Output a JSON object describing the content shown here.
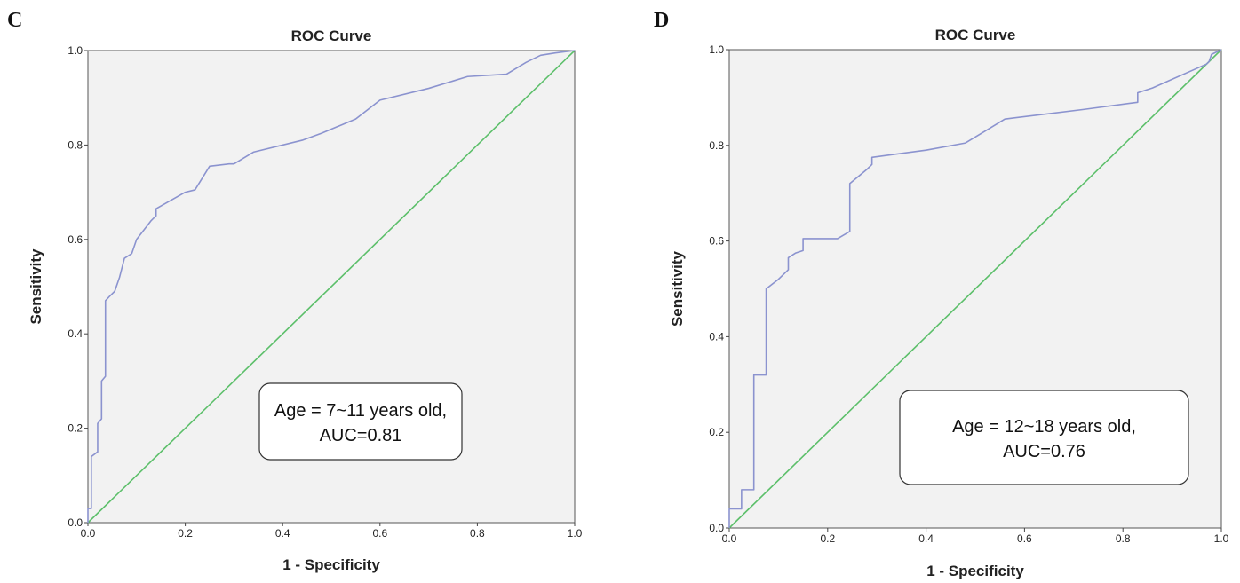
{
  "panels": [
    {
      "letter": "C",
      "annotation_line1": "Age = 7~11 years old,",
      "annotation_line2": "AUC=0.81"
    },
    {
      "letter": "D",
      "annotation_line1": "Age = 12~18 years old,",
      "annotation_line2": "AUC=0.76"
    }
  ],
  "colors": {
    "roc_curve": "#8b93cf",
    "reference_line": "#5cbf6a",
    "plot_background": "#f2f2f2",
    "frame": "#555555"
  },
  "chart_data": [
    {
      "type": "line",
      "title": "ROC Curve",
      "xlabel": "1 - Specificity",
      "ylabel": "Sensitivity",
      "xlim": [
        0,
        1
      ],
      "ylim": [
        0,
        1
      ],
      "x_ticks": [
        "0.0",
        "0.2",
        "0.4",
        "0.6",
        "0.8",
        "1.0"
      ],
      "y_ticks": [
        "0.0",
        "0.2",
        "0.4",
        "0.6",
        "0.8",
        "1.0"
      ],
      "grid": false,
      "series": [
        {
          "x": [
            0.0,
            0.0,
            0.007,
            0.007,
            0.02,
            0.02,
            0.028,
            0.028,
            0.036,
            0.036,
            0.045,
            0.055,
            0.065,
            0.075,
            0.09,
            0.1,
            0.13,
            0.14,
            0.14,
            0.2,
            0.22,
            0.25,
            0.29,
            0.3,
            0.34,
            0.44,
            0.48,
            0.55,
            0.6,
            0.7,
            0.78,
            0.86,
            0.9,
            0.93,
            0.96,
            1.0
          ],
          "y": [
            0.0,
            0.03,
            0.03,
            0.14,
            0.15,
            0.21,
            0.22,
            0.3,
            0.31,
            0.47,
            0.48,
            0.49,
            0.52,
            0.56,
            0.57,
            0.6,
            0.64,
            0.65,
            0.665,
            0.7,
            0.705,
            0.755,
            0.76,
            0.76,
            0.785,
            0.81,
            0.825,
            0.855,
            0.895,
            0.92,
            0.945,
            0.95,
            0.975,
            0.99,
            0.995,
            1.0
          ]
        },
        {
          "x": [
            0,
            1
          ],
          "y": [
            0,
            1
          ]
        }
      ]
    },
    {
      "type": "line",
      "title": "ROC Curve",
      "xlabel": "1 - Specificity",
      "ylabel": "Sensitivity",
      "xlim": [
        0,
        1
      ],
      "ylim": [
        0,
        1
      ],
      "x_ticks": [
        "0.0",
        "0.2",
        "0.4",
        "0.6",
        "0.8",
        "1.0"
      ],
      "y_ticks": [
        "0.0",
        "0.2",
        "0.4",
        "0.6",
        "0.8",
        "1.0"
      ],
      "grid": false,
      "series": [
        {
          "x": [
            0.0,
            0.0,
            0.025,
            0.025,
            0.05,
            0.05,
            0.075,
            0.075,
            0.1,
            0.12,
            0.12,
            0.135,
            0.15,
            0.15,
            0.22,
            0.245,
            0.245,
            0.28,
            0.29,
            0.29,
            0.4,
            0.48,
            0.52,
            0.56,
            0.72,
            0.83,
            0.83,
            0.86,
            0.97,
            0.975,
            0.98,
            1.0
          ],
          "y": [
            0.0,
            0.04,
            0.04,
            0.08,
            0.08,
            0.32,
            0.32,
            0.5,
            0.52,
            0.54,
            0.565,
            0.575,
            0.58,
            0.605,
            0.605,
            0.62,
            0.72,
            0.75,
            0.76,
            0.775,
            0.79,
            0.805,
            0.83,
            0.855,
            0.875,
            0.89,
            0.91,
            0.92,
            0.97,
            0.975,
            0.99,
            1.0
          ]
        },
        {
          "x": [
            0,
            1
          ],
          "y": [
            0,
            1
          ]
        }
      ]
    }
  ]
}
